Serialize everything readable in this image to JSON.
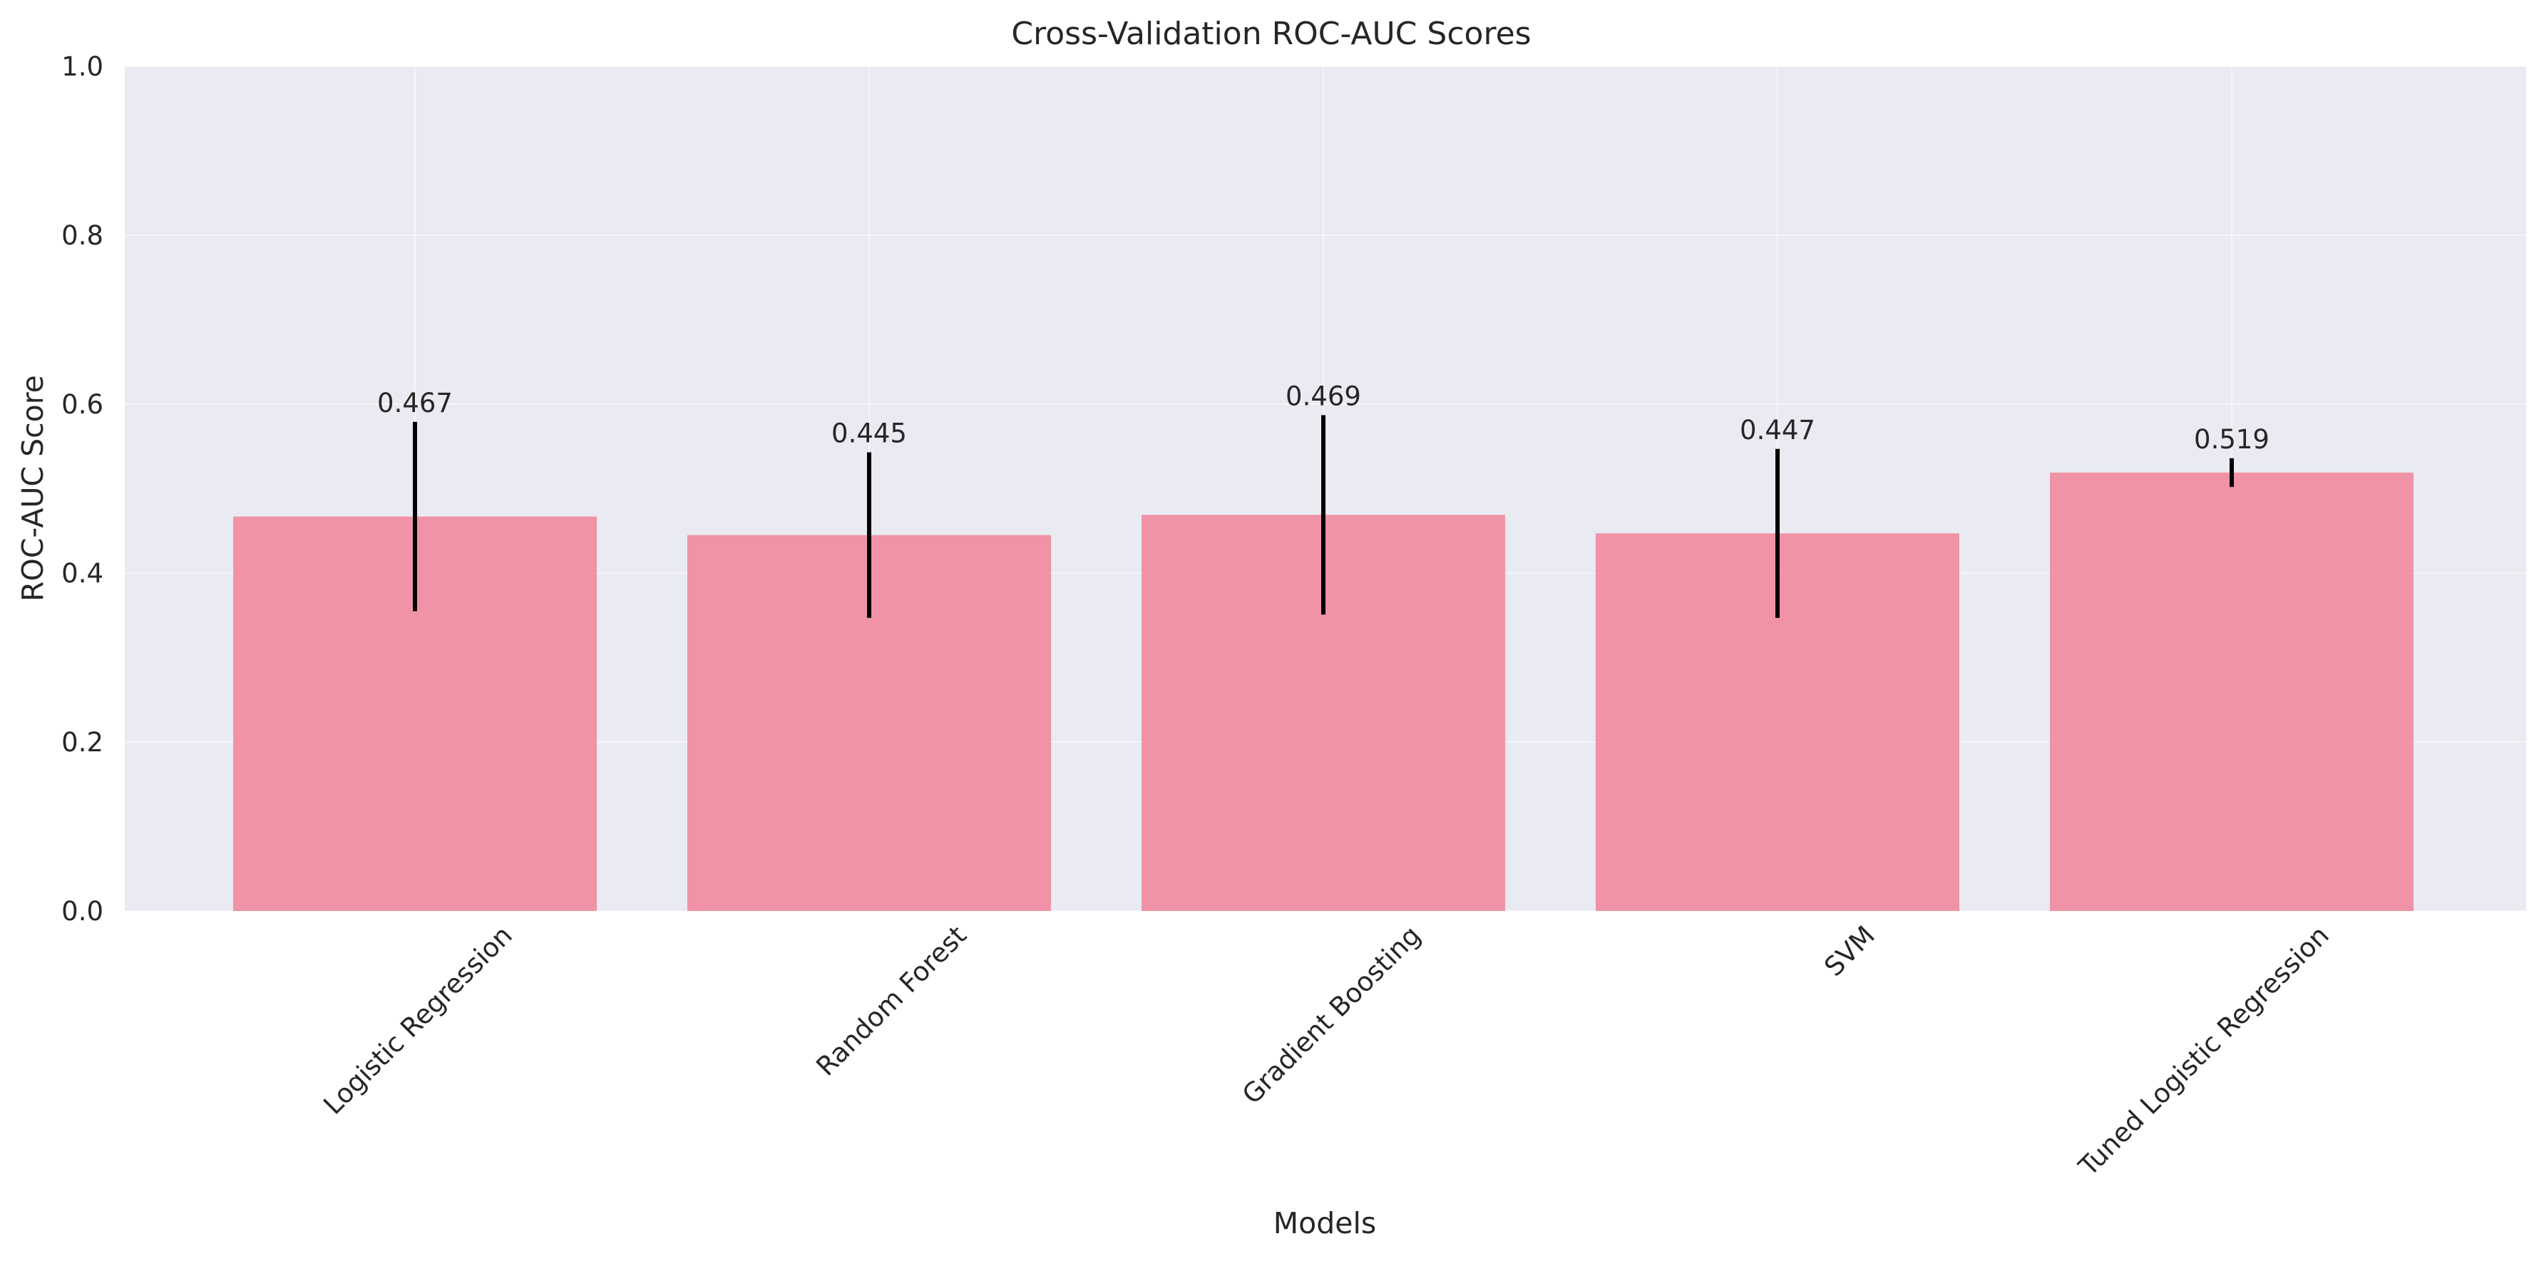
{
  "chart_data": {
    "type": "bar",
    "title": "Cross-Validation ROC-AUC Scores",
    "xlabel": "Models",
    "ylabel": "ROC-AUC Score",
    "ylim": [
      0,
      1
    ],
    "yticks": [
      0.0,
      0.2,
      0.4,
      0.6,
      0.8,
      1.0
    ],
    "ytick_labels": [
      "0.0",
      "0.2",
      "0.4",
      "0.6",
      "0.8",
      "1.0"
    ],
    "grid": true,
    "categories": [
      "Logistic Regression",
      "Random Forest",
      "Gradient Boosting",
      "SVM",
      "Tuned Logistic Regression"
    ],
    "values": [
      0.467,
      0.445,
      0.469,
      0.447,
      0.519
    ],
    "errors": [
      0.112,
      0.098,
      0.118,
      0.1,
      0.017
    ],
    "value_labels": [
      "0.467",
      "0.445",
      "0.469",
      "0.447",
      "0.519"
    ],
    "colors": {
      "bar": "#f08ca0",
      "error_bar": "#000000",
      "plot_background": "#eaeaf2",
      "grid": "#ffffff",
      "text": "#262626"
    }
  }
}
